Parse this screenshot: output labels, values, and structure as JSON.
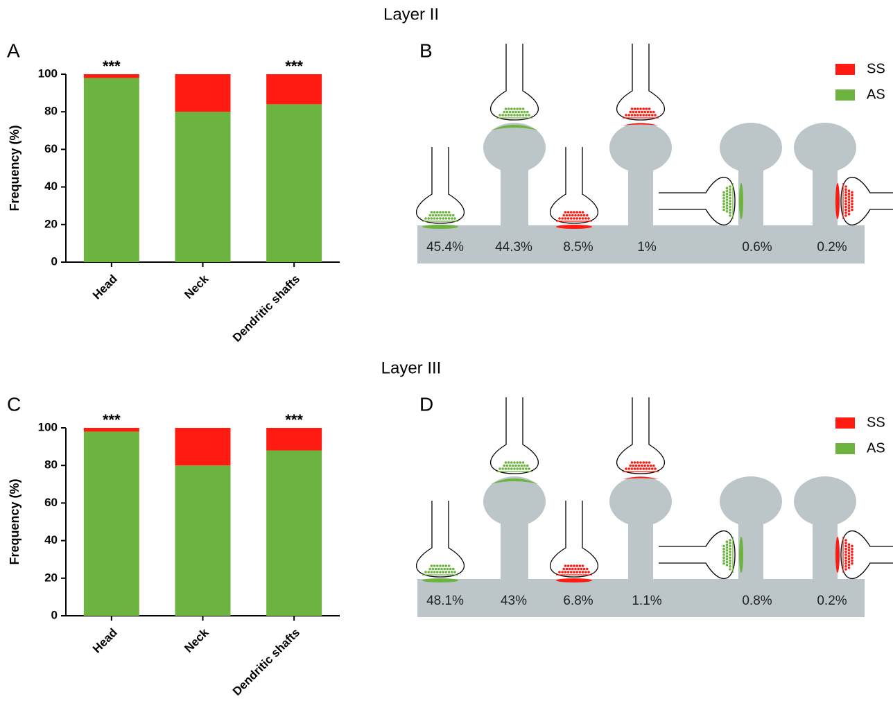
{
  "chart_data": [
    {
      "type": "bar",
      "stacked": true,
      "title": "Layer II",
      "panel": "A",
      "ylabel": "Frequency (%)",
      "categories": [
        "Head",
        "Neck",
        "Dendritic shafts"
      ],
      "series": [
        {
          "name": "AS",
          "color": "#6db33f",
          "values": [
            98,
            80,
            84
          ]
        },
        {
          "name": "SS",
          "color": "#ff1a12",
          "values": [
            2,
            20,
            16
          ]
        }
      ],
      "annotations": [
        "***",
        null,
        "***"
      ],
      "ylim": [
        0,
        100
      ],
      "yticks": [
        0,
        20,
        40,
        60,
        80,
        100
      ]
    },
    {
      "type": "bar",
      "stacked": true,
      "title": "Layer III",
      "panel": "C",
      "ylabel": "Frequency (%)",
      "categories": [
        "Head",
        "Neck",
        "Dendritic shafts"
      ],
      "series": [
        {
          "name": "AS",
          "color": "#6db33f",
          "values": [
            98,
            80,
            88
          ]
        },
        {
          "name": "SS",
          "color": "#ff1a12",
          "values": [
            2,
            20,
            12
          ]
        }
      ],
      "annotations": [
        "***",
        null,
        "***"
      ],
      "ylim": [
        0,
        100
      ],
      "yticks": [
        0,
        20,
        40,
        60,
        80,
        100
      ]
    }
  ],
  "diagrams": [
    {
      "panel": "B",
      "labels": [
        "45.4%",
        "44.3%",
        "8.5%",
        "1%",
        "0.6%",
        "0.2%"
      ]
    },
    {
      "panel": "D",
      "labels": [
        "48.1%",
        "43%",
        "6.8%",
        "1.1%",
        "0.8%",
        "0.2%"
      ]
    }
  ]
}
